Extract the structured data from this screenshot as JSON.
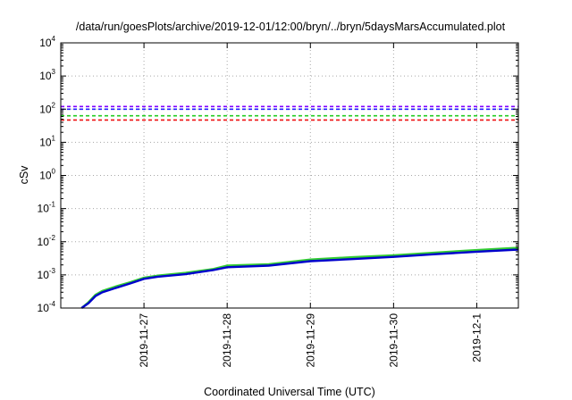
{
  "chart_data": {
    "type": "line",
    "title": "/data/run/goesPlots/archive/2019-12-01/12:00/bryn/../bryn/5daysMarsAccumulated.plot",
    "xlabel": "Coordinated Universal Time (UTC)",
    "ylabel": "cSv",
    "y_scale": "log",
    "ylim": [
      0.0001,
      10000
    ],
    "y_ticks": [
      {
        "base": "10",
        "exp": "-4",
        "value": 0.0001
      },
      {
        "base": "10",
        "exp": "-3",
        "value": 0.001
      },
      {
        "base": "10",
        "exp": "-2",
        "value": 0.01
      },
      {
        "base": "10",
        "exp": "-1",
        "value": 0.1
      },
      {
        "base": "10",
        "exp": "0",
        "value": 1
      },
      {
        "base": "10",
        "exp": "1",
        "value": 10
      },
      {
        "base": "10",
        "exp": "2",
        "value": 100
      },
      {
        "base": "10",
        "exp": "3",
        "value": 1000
      },
      {
        "base": "10",
        "exp": "4",
        "value": 10000
      }
    ],
    "xlim": [
      "2019-11-26",
      "2019-12-01 12:00"
    ],
    "x_tick_labels": [
      "2019-11-27",
      "2019-11-28",
      "2019-11-29",
      "2019-11-30",
      "2019-12-1"
    ],
    "grid": true,
    "legend": "none",
    "series": [
      {
        "style": "dashed",
        "color": "#8000ff",
        "x": [
          "2019-11-26",
          "2019-12-01 12:00"
        ],
        "y": [
          120,
          120
        ]
      },
      {
        "style": "dashed",
        "color": "#2020ff",
        "x": [
          "2019-11-26",
          "2019-12-01 12:00"
        ],
        "y": [
          100,
          100
        ]
      },
      {
        "style": "dashed",
        "color": "#22cc22",
        "x": [
          "2019-11-26",
          "2019-12-01 12:00"
        ],
        "y": [
          63,
          63
        ]
      },
      {
        "style": "dashed",
        "color": "#ee1111",
        "x": [
          "2019-11-26",
          "2019-12-01 12:00"
        ],
        "y": [
          47,
          47
        ]
      },
      {
        "style": "solid",
        "color": "#33cc33",
        "x": [
          "2019-11-26 06:00",
          "2019-11-26 08:00",
          "2019-11-26 10:00",
          "2019-11-26 12:00",
          "2019-11-26 16:00",
          "2019-11-26 20:00",
          "2019-11-27 00:00",
          "2019-11-27 04:00",
          "2019-11-27 12:00",
          "2019-11-27 20:00",
          "2019-11-28 00:00",
          "2019-11-28 12:00",
          "2019-11-29 00:00",
          "2019-11-29 12:00",
          "2019-11-30 00:00",
          "2019-11-30 12:00",
          "2019-12-01 00:00",
          "2019-12-01 12:00"
        ],
        "y": [
          0.0001,
          0.00015,
          0.00025,
          0.00033,
          0.00045,
          0.0006,
          0.00082,
          0.00095,
          0.00115,
          0.0015,
          0.0019,
          0.0021,
          0.0029,
          0.0034,
          0.0039,
          0.0047,
          0.0056,
          0.0066
        ]
      },
      {
        "style": "solid",
        "color": "#0000cc",
        "x": [
          "2019-11-26 06:00",
          "2019-11-26 08:00",
          "2019-11-26 10:00",
          "2019-11-26 12:00",
          "2019-11-26 16:00",
          "2019-11-26 20:00",
          "2019-11-27 00:00",
          "2019-11-27 04:00",
          "2019-11-27 12:00",
          "2019-11-27 20:00",
          "2019-11-28 00:00",
          "2019-11-28 12:00",
          "2019-11-29 00:00",
          "2019-11-29 12:00",
          "2019-11-30 00:00",
          "2019-11-30 12:00",
          "2019-12-01 00:00",
          "2019-12-01 12:00"
        ],
        "y": [
          0.0001,
          0.00014,
          0.00023,
          0.0003,
          0.00041,
          0.00055,
          0.00076,
          0.00088,
          0.00105,
          0.0014,
          0.0017,
          0.0019,
          0.0026,
          0.003,
          0.0035,
          0.0042,
          0.005,
          0.0058
        ]
      }
    ]
  }
}
